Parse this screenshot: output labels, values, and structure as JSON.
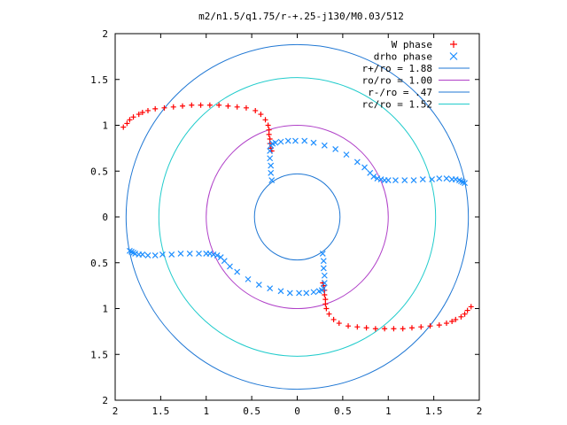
{
  "chart_data": {
    "type": "scatter",
    "title": "m2/n1.5/q1.75/r-+.25-j130/M0.03/512",
    "xlabel": "",
    "ylabel": "",
    "xlim": [
      -2,
      2
    ],
    "ylim": [
      -2,
      2
    ],
    "grid": false,
    "legend_position": "top-right",
    "x_tick_labels": [
      "2",
      "1.5",
      "1",
      "0.5",
      "0",
      "0.5",
      "1",
      "1.5",
      "2"
    ],
    "x_tick_values": [
      -2,
      -1.5,
      -1,
      -0.5,
      0,
      0.5,
      1,
      1.5,
      2
    ],
    "y_tick_labels": [
      "2",
      "1.5",
      "1",
      "0.5",
      "0",
      "0.5",
      "1",
      "1.5",
      "2"
    ],
    "y_tick_values": [
      2,
      1.5,
      1,
      0.5,
      0,
      -0.5,
      -1,
      -1.5,
      -2
    ],
    "circles": [
      {
        "name": "r+/ro = 1.88",
        "radius": 1.88,
        "color": "#1f77d4"
      },
      {
        "name": "ro/ro = 1.00",
        "radius": 1.0,
        "color": "#b040c8"
      },
      {
        "name": "r-/ro = .47",
        "radius": 0.47,
        "color": "#1f77d4"
      },
      {
        "name": "rc/ro = 1.52",
        "radius": 1.52,
        "color": "#22cccc"
      }
    ],
    "series": [
      {
        "name": "W phase",
        "marker": "+",
        "color": "#ff0000",
        "x": [
          -1.91,
          -1.87,
          -1.84,
          -1.8,
          -1.74,
          -1.7,
          -1.64,
          -1.56,
          -1.46,
          -1.36,
          -1.26,
          -1.16,
          -1.06,
          -0.96,
          -0.86,
          -0.76,
          -0.66,
          -0.56,
          -0.46,
          -0.4,
          -0.35,
          -0.32,
          -0.31,
          -0.31,
          -0.3,
          -0.3,
          -0.29,
          -0.28,
          1.91,
          1.87,
          1.84,
          1.8,
          1.74,
          1.7,
          1.64,
          1.56,
          1.46,
          1.36,
          1.26,
          1.16,
          1.06,
          0.96,
          0.86,
          0.76,
          0.66,
          0.56,
          0.46,
          0.4,
          0.35,
          0.32,
          0.31,
          0.31,
          0.3,
          0.3,
          0.29,
          0.28
        ],
        "y": [
          0.98,
          1.02,
          1.06,
          1.09,
          1.12,
          1.14,
          1.16,
          1.18,
          1.19,
          1.2,
          1.21,
          1.22,
          1.22,
          1.22,
          1.22,
          1.21,
          1.2,
          1.19,
          1.16,
          1.12,
          1.06,
          1.0,
          0.95,
          0.9,
          0.85,
          0.8,
          0.75,
          0.72,
          -0.98,
          -1.02,
          -1.06,
          -1.09,
          -1.12,
          -1.14,
          -1.16,
          -1.18,
          -1.19,
          -1.2,
          -1.21,
          -1.22,
          -1.22,
          -1.22,
          -1.22,
          -1.21,
          -1.2,
          -1.19,
          -1.16,
          -1.12,
          -1.06,
          -1.0,
          -0.95,
          -0.9,
          -0.85,
          -0.8,
          -0.75,
          -0.72
        ]
      },
      {
        "name": "drho phase",
        "marker": "x",
        "color": "#1f8fff",
        "x": [
          -0.28,
          -0.29,
          -0.29,
          -0.3,
          -0.3,
          -0.29,
          -0.27,
          -0.24,
          -0.18,
          -0.1,
          -0.02,
          0.08,
          0.18,
          0.3,
          0.42,
          0.54,
          0.66,
          0.74,
          0.8,
          0.84,
          0.88,
          0.92,
          0.96,
          1.0,
          1.08,
          1.18,
          1.28,
          1.38,
          1.48,
          1.56,
          1.64,
          1.7,
          1.74,
          1.78,
          1.8,
          1.82,
          1.84,
          0.28,
          0.29,
          0.29,
          0.3,
          0.3,
          0.29,
          0.27,
          0.24,
          0.18,
          0.1,
          0.02,
          -0.08,
          -0.18,
          -0.3,
          -0.42,
          -0.54,
          -0.66,
          -0.74,
          -0.8,
          -0.84,
          -0.88,
          -0.92,
          -0.96,
          -1.0,
          -1.08,
          -1.18,
          -1.28,
          -1.38,
          -1.48,
          -1.56,
          -1.64,
          -1.7,
          -1.74,
          -1.78,
          -1.8,
          -1.82,
          -1.84
        ],
        "y": [
          0.4,
          0.48,
          0.56,
          0.64,
          0.72,
          0.78,
          0.8,
          0.81,
          0.82,
          0.83,
          0.83,
          0.83,
          0.81,
          0.78,
          0.74,
          0.68,
          0.6,
          0.54,
          0.48,
          0.44,
          0.42,
          0.41,
          0.4,
          0.4,
          0.4,
          0.4,
          0.4,
          0.41,
          0.41,
          0.42,
          0.42,
          0.41,
          0.41,
          0.4,
          0.39,
          0.38,
          0.37,
          -0.4,
          -0.48,
          -0.56,
          -0.64,
          -0.72,
          -0.78,
          -0.8,
          -0.81,
          -0.82,
          -0.83,
          -0.83,
          -0.83,
          -0.81,
          -0.78,
          -0.74,
          -0.68,
          -0.6,
          -0.54,
          -0.48,
          -0.44,
          -0.42,
          -0.41,
          -0.4,
          -0.4,
          -0.4,
          -0.4,
          -0.4,
          -0.41,
          -0.41,
          -0.42,
          -0.42,
          -0.41,
          -0.41,
          -0.4,
          -0.39,
          -0.38,
          -0.37
        ]
      }
    ]
  }
}
